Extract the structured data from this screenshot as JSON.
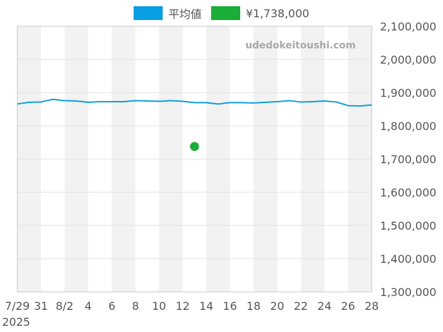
{
  "chart_data": {
    "type": "line",
    "legend": [
      {
        "label": "平均値",
        "color": "#0a9ee3"
      },
      {
        "label": "¥1,738,000",
        "color": "#1aad37"
      }
    ],
    "watermark": "udedokeitoushi.com",
    "x_start_label": "7/29",
    "x_year_label": "2025",
    "x_tick_labels": [
      "7/29",
      "31",
      "8/2",
      "4",
      "6",
      "8",
      "10",
      "12",
      "14",
      "16",
      "18",
      "20",
      "22",
      "24",
      "26",
      "28"
    ],
    "y_tick_labels": [
      "2,100,000",
      "2,000,000",
      "1,900,000",
      "1,800,000",
      "1,700,000",
      "1,600,000",
      "1,500,000",
      "1,400,000",
      "1,300,000"
    ],
    "ylim": [
      1300000,
      2100000
    ],
    "xlim_days": [
      "2025-07-29",
      "2025-08-28"
    ],
    "series": [
      {
        "name": "平均値",
        "color": "#0a9ee3",
        "x": [
          "2025-07-29",
          "2025-07-30",
          "2025-07-31",
          "2025-08-01",
          "2025-08-02",
          "2025-08-03",
          "2025-08-04",
          "2025-08-05",
          "2025-08-06",
          "2025-08-07",
          "2025-08-08",
          "2025-08-09",
          "2025-08-10",
          "2025-08-11",
          "2025-08-12",
          "2025-08-13",
          "2025-08-14",
          "2025-08-15",
          "2025-08-16",
          "2025-08-17",
          "2025-08-18",
          "2025-08-19",
          "2025-08-20",
          "2025-08-21",
          "2025-08-22",
          "2025-08-23",
          "2025-08-24",
          "2025-08-25",
          "2025-08-26",
          "2025-08-27",
          "2025-08-28"
        ],
        "y": [
          1866000,
          1871000,
          1872000,
          1880000,
          1876000,
          1875000,
          1871000,
          1873000,
          1873000,
          1873000,
          1876000,
          1875000,
          1874000,
          1876000,
          1874000,
          1870000,
          1870000,
          1866000,
          1870000,
          1870000,
          1869000,
          1871000,
          1873000,
          1876000,
          1872000,
          1873000,
          1875000,
          1872000,
          1861000,
          1860000,
          1863000
        ]
      },
      {
        "name": "¥1,738,000",
        "color": "#1aad37",
        "type": "scatter",
        "x": [
          "2025-08-13"
        ],
        "y": [
          1738000
        ]
      }
    ],
    "grid": true,
    "band_fill": "#f2f2f2"
  }
}
